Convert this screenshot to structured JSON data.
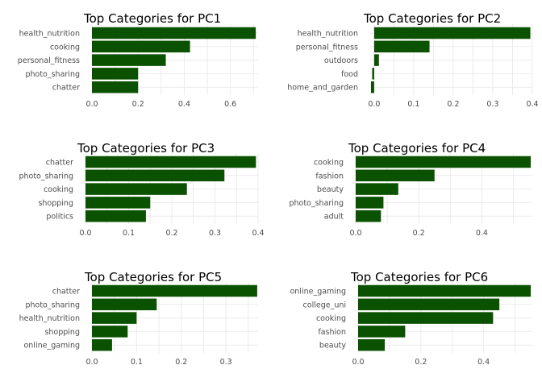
{
  "bar_color": "#0b5200",
  "grid_color": "#ebebeb",
  "chart_data": [
    {
      "type": "bar",
      "orientation": "horizontal",
      "title": "Top Categories for PC1",
      "categories": [
        "health_nutrition",
        "cooking",
        "personal_fitness",
        "photo_sharing",
        "chatter"
      ],
      "values": [
        0.71,
        0.425,
        0.32,
        0.2,
        0.2
      ],
      "xlim": [
        0,
        0.72
      ],
      "ticks": [
        0.0,
        0.2,
        0.4,
        0.6
      ],
      "tick_labels": [
        "0.0",
        "0.2",
        "0.4",
        "0.6"
      ]
    },
    {
      "type": "bar",
      "orientation": "horizontal",
      "title": "Top Categories for PC2",
      "categories": [
        "health_nutrition",
        "personal_fitness",
        "outdoors",
        "food",
        "home_and_garden"
      ],
      "values": [
        0.395,
        0.14,
        0.012,
        -0.005,
        -0.008
      ],
      "xlim": [
        -0.01,
        0.4
      ],
      "ticks": [
        0.0,
        0.1,
        0.2,
        0.3,
        0.4
      ],
      "tick_labels": [
        "0.0",
        "0.1",
        "0.2",
        "0.3",
        "0.4"
      ]
    },
    {
      "type": "bar",
      "orientation": "horizontal",
      "title": "Top Categories for PC3",
      "categories": [
        "chatter",
        "photo_sharing",
        "cooking",
        "shopping",
        "politics"
      ],
      "values": [
        0.395,
        0.322,
        0.235,
        0.15,
        0.14
      ],
      "xlim": [
        0,
        0.4
      ],
      "ticks": [
        0.0,
        0.1,
        0.2,
        0.3,
        0.4
      ],
      "tick_labels": [
        "0.0",
        "0.1",
        "0.2",
        "0.3",
        "0.4"
      ]
    },
    {
      "type": "bar",
      "orientation": "horizontal",
      "title": "Top Categories for PC4",
      "categories": [
        "cooking",
        "fashion",
        "beauty",
        "photo_sharing",
        "adult"
      ],
      "values": [
        0.555,
        0.25,
        0.135,
        0.088,
        0.08
      ],
      "xlim": [
        0,
        0.56
      ],
      "ticks": [
        0.0,
        0.2,
        0.4
      ],
      "tick_labels": [
        "0.0",
        "0.2",
        "0.4"
      ]
    },
    {
      "type": "bar",
      "orientation": "horizontal",
      "title": "Top Categories for PC5",
      "categories": [
        "chatter",
        "photo_sharing",
        "health_nutrition",
        "shopping",
        "online_gaming"
      ],
      "values": [
        0.37,
        0.145,
        0.1,
        0.08,
        0.045
      ],
      "xlim": [
        0,
        0.372
      ],
      "ticks": [
        0.0,
        0.1,
        0.2,
        0.3
      ],
      "tick_labels": [
        "0.0",
        "0.1",
        "0.2",
        "0.3"
      ]
    },
    {
      "type": "bar",
      "orientation": "horizontal",
      "title": "Top Categories for PC6",
      "categories": [
        "online_gaming",
        "college_uni",
        "cooking",
        "fashion",
        "beauty"
      ],
      "values": [
        0.55,
        0.45,
        0.43,
        0.15,
        0.085
      ],
      "xlim": [
        0,
        0.555
      ],
      "ticks": [
        0.0,
        0.2,
        0.4
      ],
      "tick_labels": [
        "0.0",
        "0.2",
        "0.4"
      ]
    }
  ]
}
